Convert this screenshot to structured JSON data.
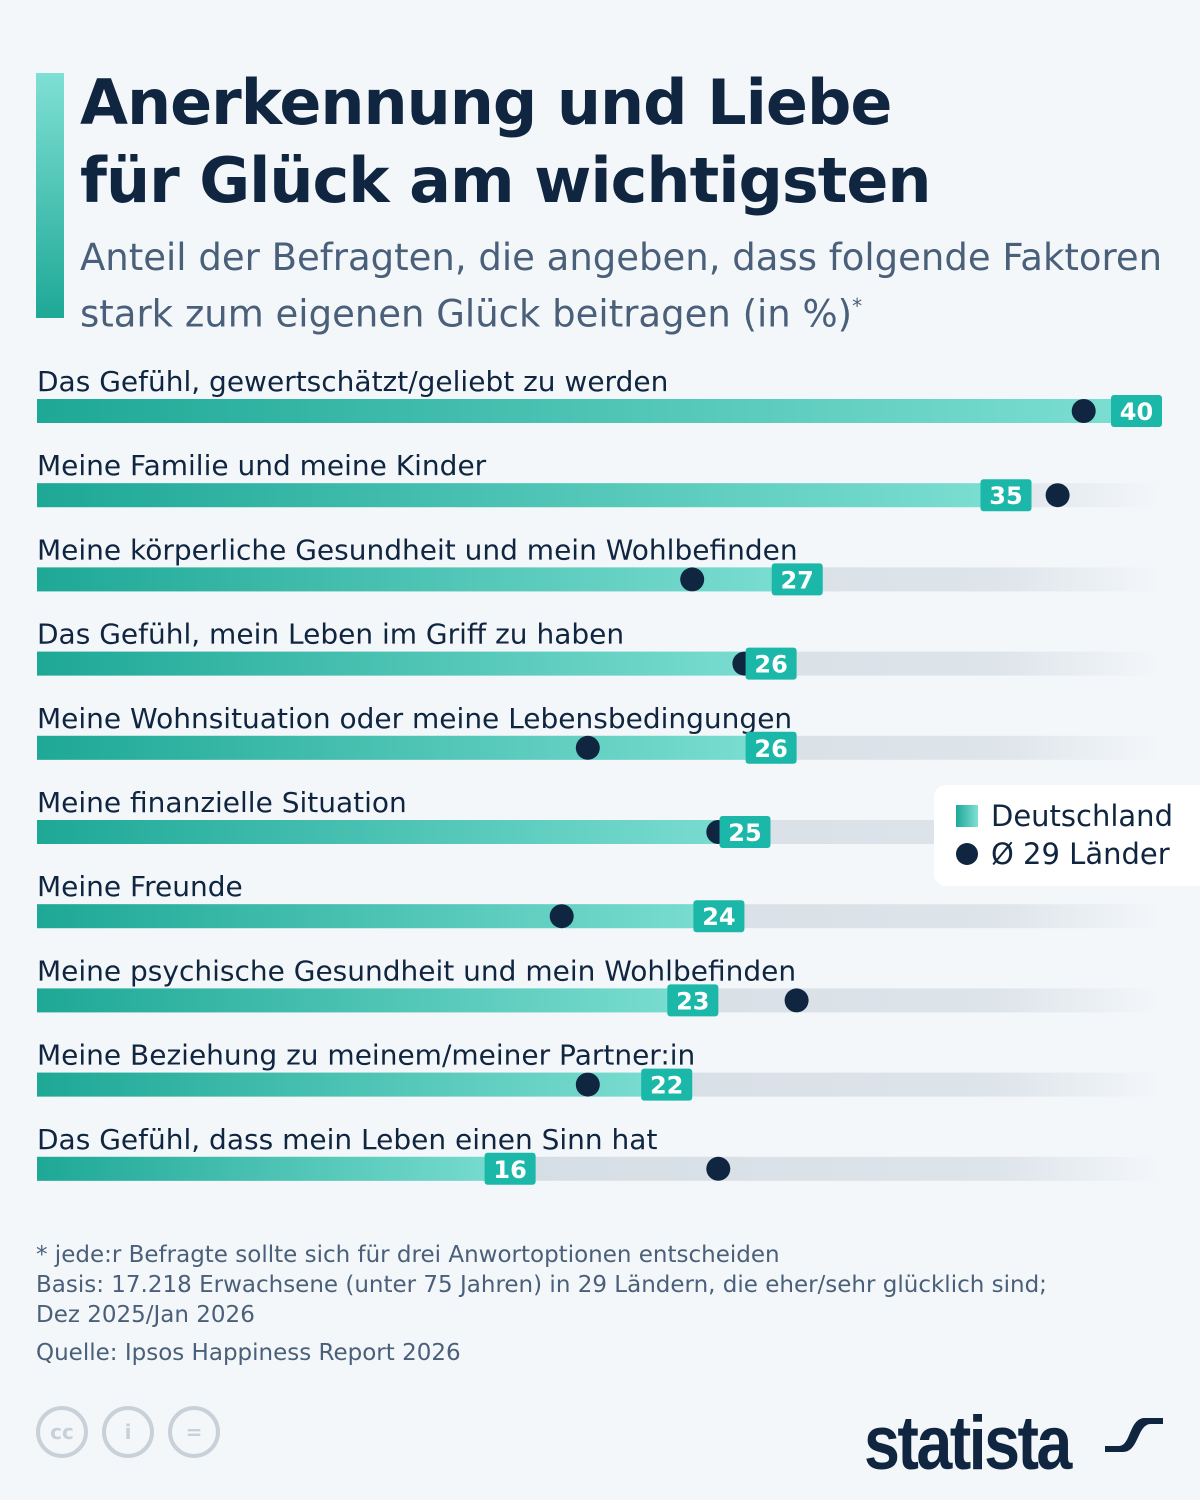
{
  "title": "Anerkennung und Liebe\nfür Glück am wichtigsten",
  "subtitle": "Anteil der Befragten, die angeben, dass folgende Faktoren stark zum eigenen Glück beitragen (in %)",
  "subtitle_marker": "*",
  "colors": {
    "bar_start": "#1ea896",
    "bar_end": "#7fe0d4",
    "label_box": "#1bb8a9",
    "dot": "#0f2540",
    "track": "#dbe2e9"
  },
  "chart_data": {
    "type": "bar",
    "orientation": "horizontal",
    "categories": [
      "Das Gefühl, gewertschätzt/geliebt zu werden",
      "Meine Familie und meine Kinder",
      "Meine körperliche Gesundheit und mein Wohlbefinden",
      "Das Gefühl, mein Leben im Griff zu haben",
      "Meine Wohnsituation oder meine Lebensbedingungen",
      "Meine finanzielle Situation",
      "Meine Freunde",
      "Meine psychische Gesundheit und mein Wohlbefinden",
      "Meine Beziehung zu meinem/meiner Partner:in",
      "Das Gefühl, dass mein Leben einen Sinn hat"
    ],
    "series": [
      {
        "name": "Deutschland",
        "type": "bar",
        "values": [
          40,
          35,
          27,
          26,
          26,
          25,
          24,
          23,
          22,
          16
        ]
      },
      {
        "name": "Ø 29 Länder",
        "type": "dot",
        "values": [
          37,
          36,
          22,
          24,
          18,
          23,
          17,
          26,
          18,
          23
        ]
      }
    ],
    "data_labels": [
      "40",
      "35",
      "27",
      "26",
      "26",
      "25",
      "24",
      "23",
      "22",
      "16"
    ],
    "legend": "right"
  },
  "notes": {
    "line1": "* jede:r Befragte sollte sich für drei Anwortoptionen entscheiden",
    "line2": "Basis: 17.218 Erwachsene (unter 75 Jahren) in 29 Ländern, die eher/sehr glücklich sind;",
    "line3": "Dez 2025/Jan 2026",
    "source": "Quelle: Ipsos Happiness Report 2026"
  },
  "logo": "statista",
  "icons": [
    "cc-icon",
    "by-icon",
    "nd-icon"
  ]
}
